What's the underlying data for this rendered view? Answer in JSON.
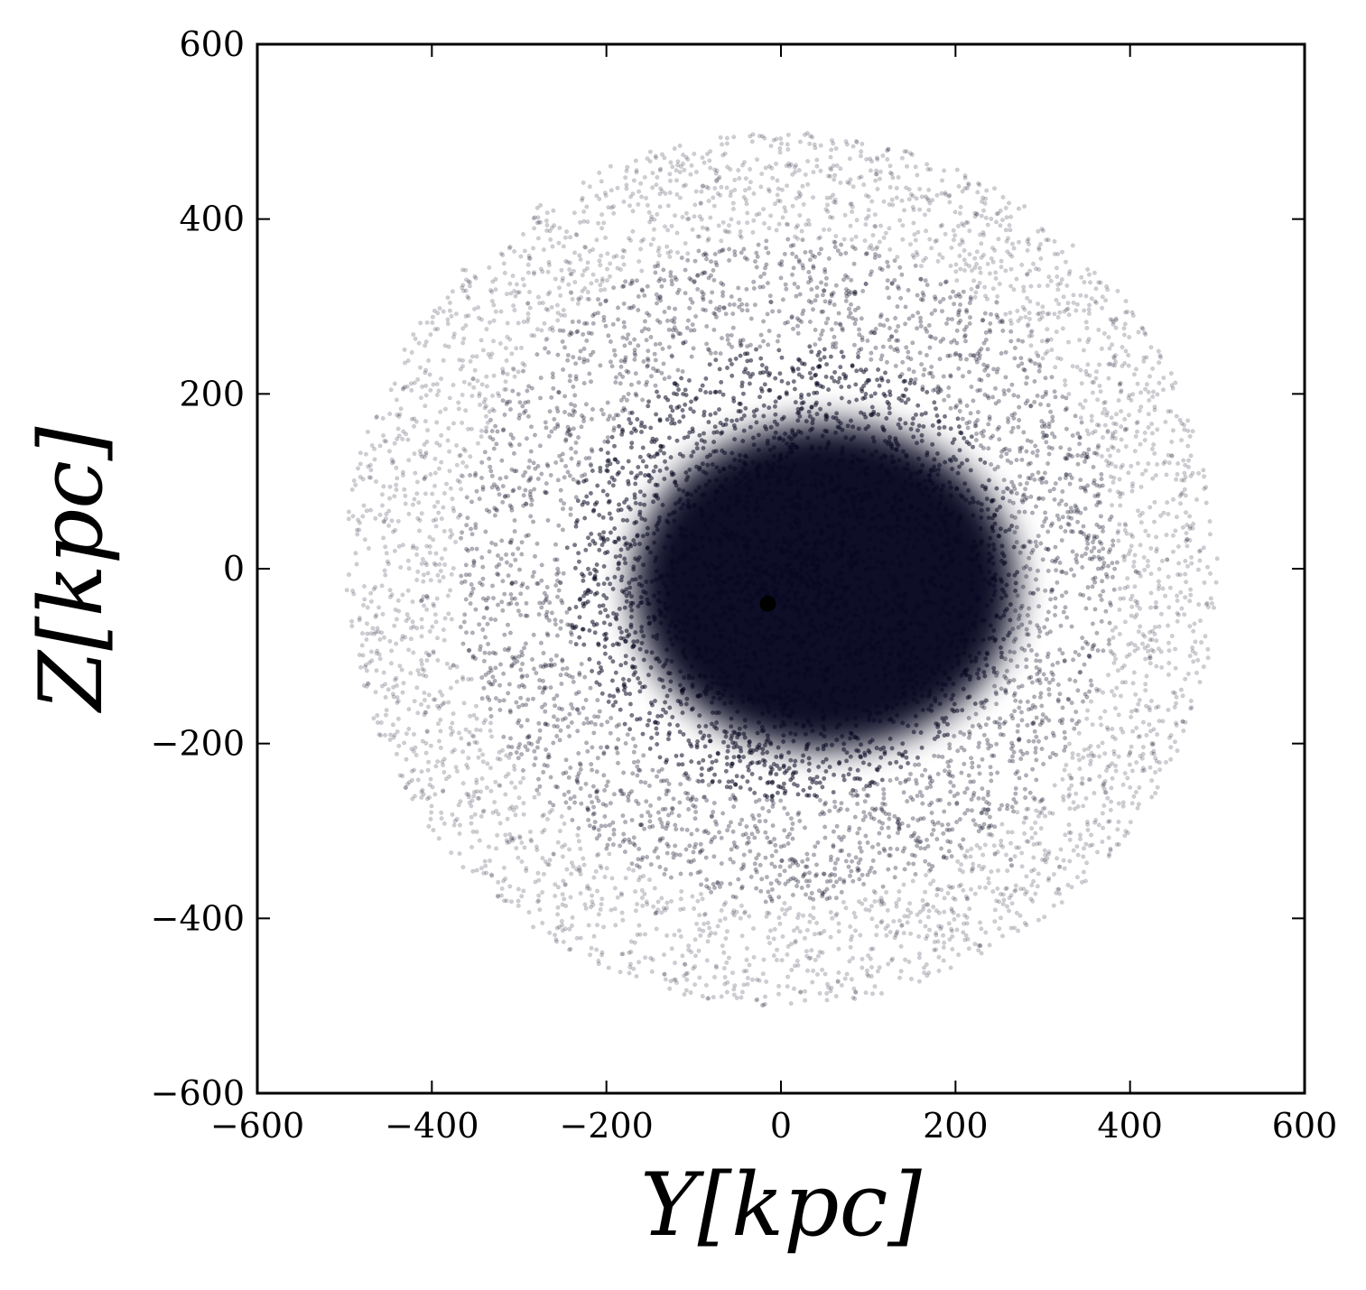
{
  "chart_data": {
    "type": "scatter",
    "title": "",
    "xlabel": "Y[kpc]",
    "ylabel": "Z[kpc]",
    "xlim": [
      -600,
      600
    ],
    "ylim": [
      -600,
      600
    ],
    "xticks": [
      -600,
      -400,
      -200,
      0,
      200,
      400,
      600
    ],
    "yticks": [
      -600,
      -400,
      -200,
      0,
      200,
      400,
      600
    ],
    "xtick_labels": [
      "−600",
      "−400",
      "−200",
      "0",
      "200",
      "400",
      "600"
    ],
    "ytick_labels": [
      "−600",
      "−400",
      "−200",
      "0",
      "200",
      "400",
      "600"
    ],
    "grid": false,
    "legend": "none",
    "marker_color": "#0a0a23",
    "point_cloud": {
      "shape": "sphere",
      "outer_radius": 500,
      "dense_core_center": [
        50,
        -20
      ],
      "dense_core_radius": 220,
      "subhalo_center": [
        -15,
        -40
      ]
    }
  }
}
